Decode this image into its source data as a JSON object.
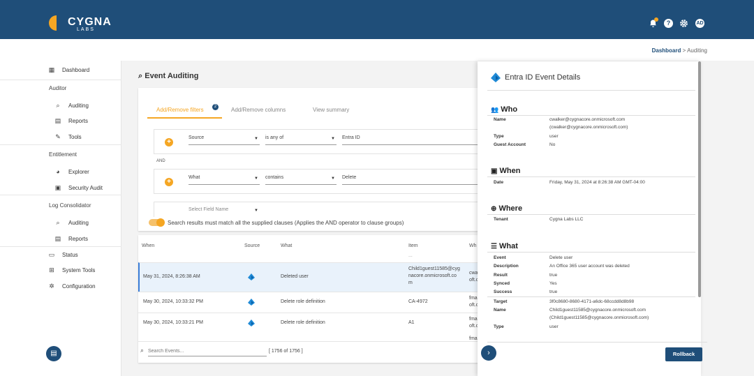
{
  "brand": {
    "name": "CYGNA",
    "sub": "LABS"
  },
  "header_icons": [
    "bell-icon",
    "help-icon",
    "gear-icon",
    "avatar"
  ],
  "avatar_initials": "AD",
  "breadcrumb": {
    "home": "Dashboard",
    "sep": ">",
    "current": "Auditing"
  },
  "sidebar": {
    "dashboard": "Dashboard",
    "auditor": "Auditor",
    "auditing": "Auditing",
    "reports": "Reports",
    "tools": "Tools",
    "entitlement": "Entitlement",
    "explorer": "Explorer",
    "security_audit": "Security Audit",
    "log_consolidator": "Log Consolidator",
    "lc_auditing": "Auditing",
    "lc_reports": "Reports",
    "status": "Status",
    "system_tools": "System Tools",
    "configuration": "Configuration"
  },
  "page_title": "Event Auditing",
  "tabs": {
    "filters": "Add/Remove filters",
    "filters_badge": "2",
    "columns": "Add/Remove columns",
    "summary": "View summary"
  },
  "clauses": [
    {
      "field": "Source",
      "op": "is any of",
      "value": "Entra ID"
    },
    {
      "field": "What",
      "op": "contains",
      "value": "Delete"
    }
  ],
  "clause_and": "AND",
  "new_field_placeholder": "Select Field Name",
  "toggle_label": "Search results must match all the supplied clauses (Applies the AND operator to clause groups)",
  "table": {
    "columns": [
      "When",
      "Source",
      "What",
      "Item",
      "Wh"
    ],
    "rows": [
      {
        "when": "May 31, 2024, 8:26:38 AM",
        "what": "Deleted user",
        "item1": "Child1guest11585@cyg",
        "item2": "nacore.onmicrosoft.co",
        "item3": "m",
        "wh": "cwa",
        "wh2": "oft.co"
      },
      {
        "when": "May 30, 2024, 10:33:32 PM",
        "what": "Delete role definition",
        "item1": "CA-4972",
        "wh": "fma",
        "wh2": "oft.c"
      },
      {
        "when": "May 30, 2024, 10:33:21 PM",
        "what": "Delete role definition",
        "item1": "A1",
        "wh": "fma",
        "wh2": "oft.c"
      }
    ],
    "partial_item_top": "...",
    "partial_last": "fma"
  },
  "search": {
    "placeholder": "Search Events...",
    "count": "[ 1756 of 1756 ]"
  },
  "panel": {
    "title": "Entra ID Event Details",
    "who": {
      "head": "Who",
      "name_label": "Name",
      "name_value": "cwalker@cygnacore.onmicrosoft.com (cwalker@cygnacore.onmicrosoft.com)",
      "type_label": "Type",
      "type_value": "user",
      "guest_label": "Guest Account",
      "guest_value": "No"
    },
    "when": {
      "head": "When",
      "date_label": "Date",
      "date_value": "Friday, May 31, 2024 at 8:26:38 AM GMT-04:00"
    },
    "where": {
      "head": "Where",
      "tenant_label": "Tenant",
      "tenant_value": "Cygna Labs LLC"
    },
    "what": {
      "head": "What",
      "event_label": "Event",
      "event_value": "Delete user",
      "desc_label": "Description",
      "desc_value": "An Office 365 user account was deleted",
      "result_label": "Result",
      "result_value": "true",
      "synced_label": "Synced",
      "synced_value": "Yes",
      "success_label": "Success",
      "success_value": "true",
      "target_label": "Target",
      "target_value": "3f0c8680-8680-4171-a6dc-68ccdd8d8b98",
      "tname_label": "Name",
      "tname_value": "Child1guest11585@cygnacore.onmicrosoft.com (Child1guest11585@cygnacore.onmicrosoft.com)",
      "ttype_label": "Type",
      "ttype_value": "user"
    },
    "rollback": "Rollback"
  },
  "colors": {
    "header": "#1f4e79",
    "accent": "#f5a623",
    "selected_row": "#e9f2fb"
  }
}
